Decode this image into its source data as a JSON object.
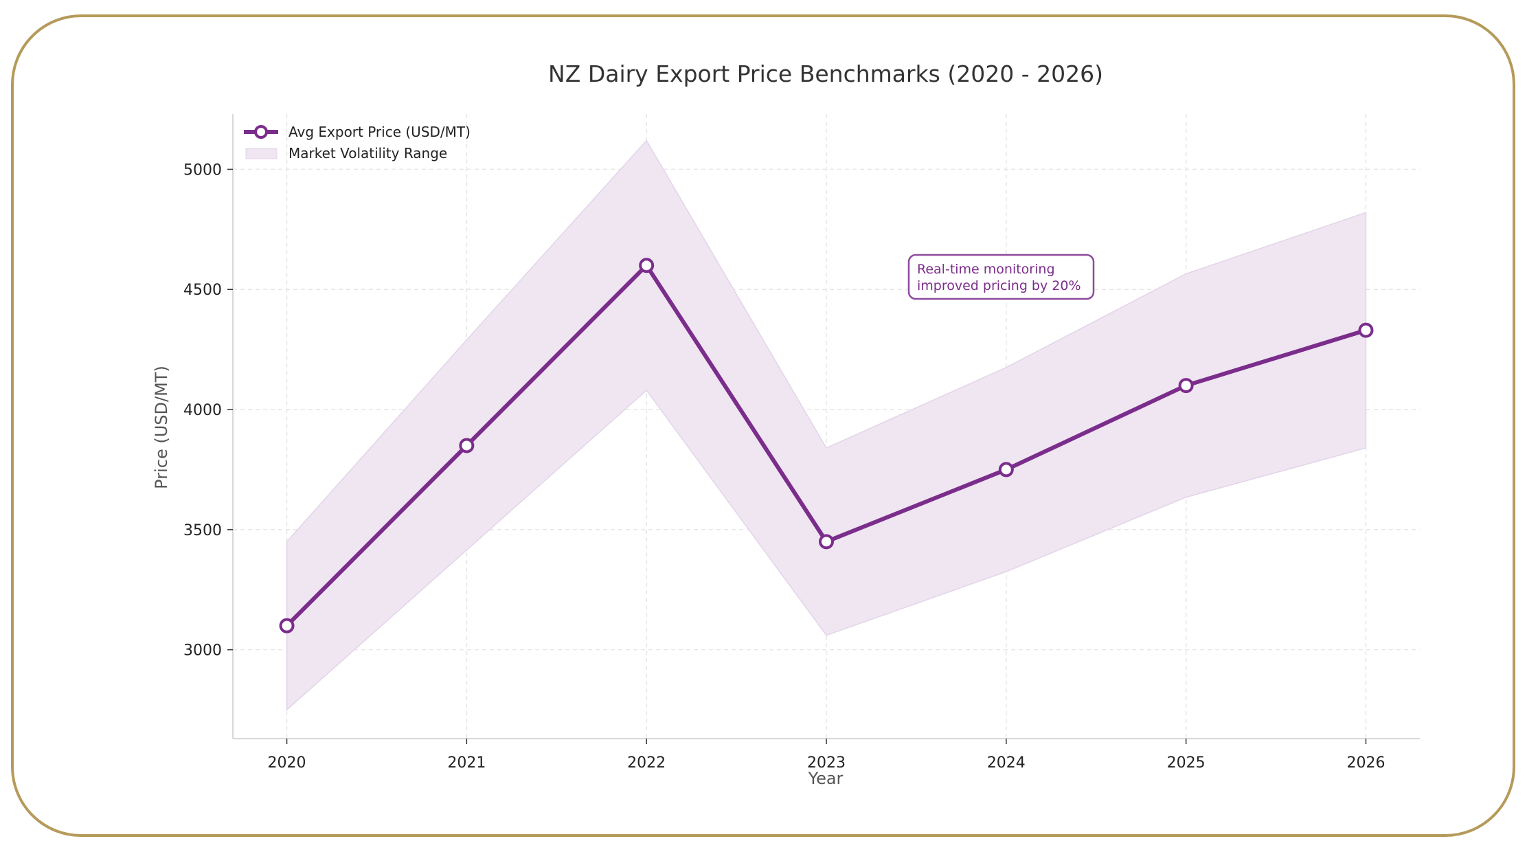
{
  "chart_data": {
    "type": "line",
    "title": "NZ Dairy Export Price Benchmarks (2020 - 2026)",
    "xlabel": "Year",
    "ylabel": "Price (USD/MT)",
    "x": [
      2020,
      2021,
      2022,
      2023,
      2024,
      2025,
      2026
    ],
    "xticks": [
      "2020",
      "2021",
      "2022",
      "2023",
      "2024",
      "2025",
      "2026"
    ],
    "yticks": [
      "3000",
      "3500",
      "4000",
      "4500",
      "5000"
    ],
    "ytick_values": [
      3000,
      3500,
      4000,
      4500,
      5000
    ],
    "xlim": [
      2019.7,
      2026.3
    ],
    "ylim": [
      2630,
      5230
    ],
    "grid": true,
    "legend_position": "top-left",
    "series": [
      {
        "name": "Avg Export Price (USD/MT)",
        "values": [
          3100,
          3850,
          4600,
          3450,
          3750,
          4100,
          4330
        ],
        "color": "#7b2d8b",
        "marker": "open-circle"
      }
    ],
    "band": {
      "name": "Market Volatility Range",
      "upper": [
        3450,
        4290,
        5120,
        3840,
        4175,
        4565,
        4820
      ],
      "lower": [
        2750,
        3415,
        4080,
        3060,
        3325,
        3635,
        3840
      ],
      "color": "#efe6f2"
    },
    "annotation": {
      "lines": [
        "Real-time monitoring",
        "improved pricing by 20%"
      ],
      "x": 2023.5,
      "y": 4530
    }
  },
  "frame_color": "#b59a5a"
}
